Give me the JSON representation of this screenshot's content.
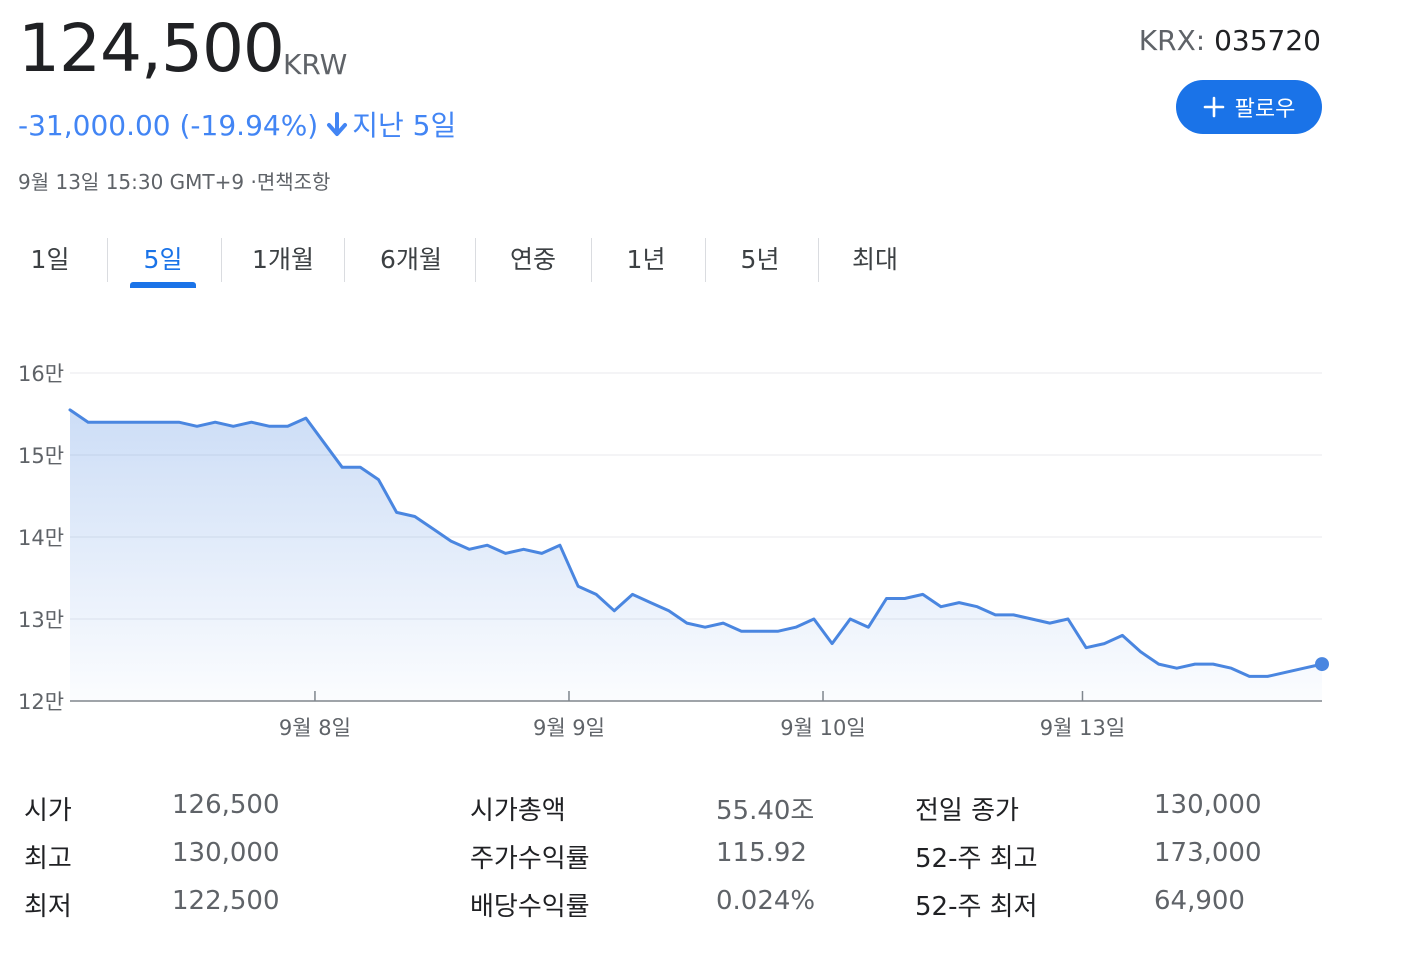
{
  "header": {
    "price": "124,500",
    "currency": "KRW",
    "change": "-31,000.00 (-19.94%)",
    "period": "지난 5일",
    "timestamp": "9월 13일 15:30 GMT+9 ·면책조항",
    "ticker_exchange": "KRX:",
    "ticker_code": "035720",
    "follow_label": "팔로우"
  },
  "colors": {
    "accent": "#1a73e8",
    "line": "#4a86e0",
    "negative": "#4285f4"
  },
  "tabs": [
    {
      "label": "1일",
      "active": false
    },
    {
      "label": "5일",
      "active": true
    },
    {
      "label": "1개월",
      "active": false
    },
    {
      "label": "6개월",
      "active": false
    },
    {
      "label": "연중",
      "active": false
    },
    {
      "label": "1년",
      "active": false
    },
    {
      "label": "5년",
      "active": false
    },
    {
      "label": "최대",
      "active": false
    }
  ],
  "chart_data": {
    "type": "area",
    "title": "",
    "xlabel": "",
    "ylabel": "",
    "y_ticks": [
      {
        "value": 160000,
        "label": "16만"
      },
      {
        "value": 150000,
        "label": "15만"
      },
      {
        "value": 140000,
        "label": "14만"
      },
      {
        "value": 130000,
        "label": "13만"
      },
      {
        "value": 120000,
        "label": "12만"
      }
    ],
    "ylim": [
      120000,
      160000
    ],
    "x_ticks": [
      {
        "index": 13.5,
        "label": "9월 8일"
      },
      {
        "index": 27.5,
        "label": "9월 9일"
      },
      {
        "index": 41.5,
        "label": "9월 10일"
      },
      {
        "index": 55.8,
        "label": "9월 13일"
      }
    ],
    "x_count": 70,
    "grid": true,
    "series": [
      {
        "values": [
          155500,
          154000,
          154000,
          154000,
          154000,
          154000,
          154000,
          153500,
          154000,
          153500,
          154000,
          153500,
          153500,
          154500,
          151500,
          148500,
          148500,
          147000,
          143000,
          142500,
          141000,
          139500,
          138500,
          139000,
          138000,
          138500,
          138000,
          139000,
          134000,
          133000,
          131000,
          133000,
          132000,
          131000,
          129500,
          129000,
          129500,
          128500,
          128500,
          128500,
          129000,
          130000,
          127000,
          130000,
          129000,
          132500,
          132500,
          133000,
          131500,
          132000,
          131500,
          130500,
          130500,
          130000,
          129500,
          130000,
          126500,
          127000,
          128000,
          126000,
          124500,
          124000,
          124500,
          124500,
          124000,
          123000,
          123000,
          123500,
          124000,
          124500
        ]
      }
    ],
    "last_point": 124500
  },
  "stats": [
    [
      {
        "label": "시가",
        "value": "126,500"
      },
      {
        "label": "최고",
        "value": "130,000"
      },
      {
        "label": "최저",
        "value": "122,500"
      }
    ],
    [
      {
        "label": "시가총액",
        "value": "55.40조"
      },
      {
        "label": "주가수익률",
        "value": "115.92"
      },
      {
        "label": "배당수익률",
        "value": "0.024%"
      }
    ],
    [
      {
        "label": "전일 종가",
        "value": "130,000"
      },
      {
        "label": "52-주 최고",
        "value": "173,000"
      },
      {
        "label": "52-주 최저",
        "value": "64,900"
      }
    ]
  ]
}
